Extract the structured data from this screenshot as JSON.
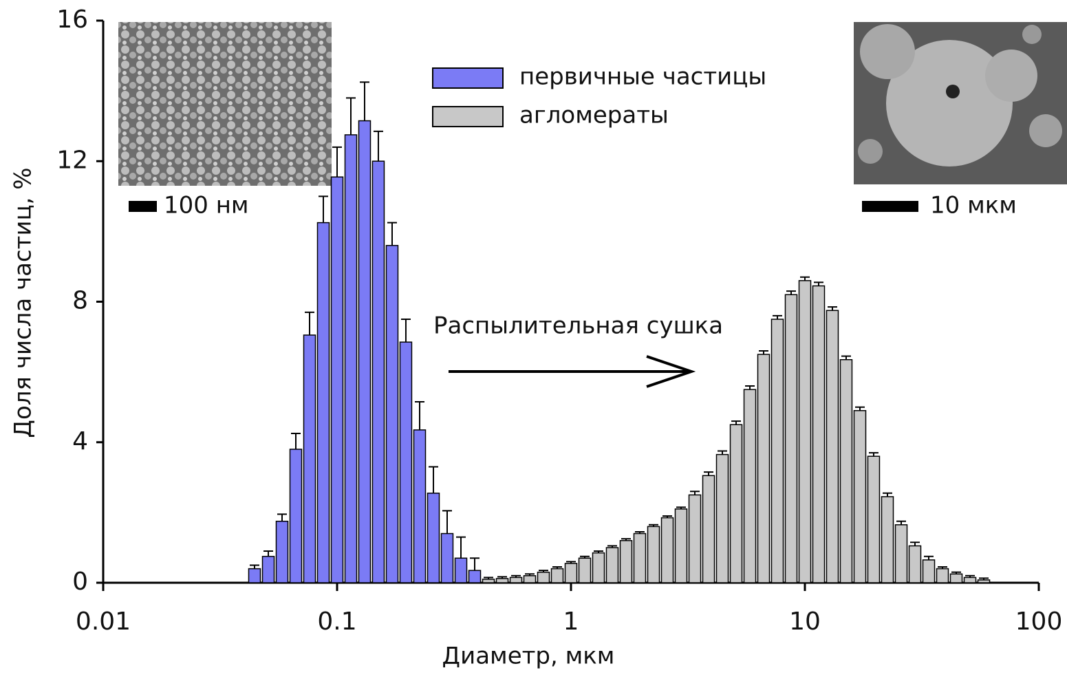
{
  "chart_data": {
    "type": "bar",
    "xlabel": "Диаметр, мкм",
    "ylabel": "Доля числа частиц, %",
    "xscale": "log",
    "xlim": [
      0.01,
      100
    ],
    "xticks": [
      0.01,
      0.1,
      1,
      10,
      100
    ],
    "ylim": [
      0,
      16
    ],
    "yticks": [
      0,
      4,
      8,
      12,
      16
    ],
    "legend": "upper center",
    "annotations": [
      "Распылительная сушка",
      "100 нм",
      "10 мкм"
    ],
    "series": [
      {
        "name": "первичные частицы",
        "color": "#7b7bf5",
        "x": [
          0.04436,
          0.05081,
          0.05817,
          0.06661,
          0.07627,
          0.08733,
          0.1,
          0.1145,
          0.1311,
          0.1501,
          0.1719,
          0.1968,
          0.2254,
          0.2581,
          0.2955,
          0.3384,
          0.3875
        ],
        "values": [
          0.4,
          0.75,
          1.75,
          3.8,
          7.05,
          10.25,
          11.55,
          12.75,
          13.15,
          12.0,
          9.6,
          6.85,
          4.35,
          2.55,
          1.4,
          0.7,
          0.35
        ],
        "errors": [
          0.1,
          0.15,
          0.2,
          0.45,
          0.65,
          0.75,
          0.85,
          1.05,
          1.1,
          0.85,
          0.65,
          0.65,
          0.8,
          0.75,
          0.65,
          0.6,
          0.35
        ]
      },
      {
        "name": "агломераты",
        "color": "#c8c8c8",
        "x": [
          0.4437,
          0.5081,
          0.5818,
          0.6661,
          0.7627,
          0.8733,
          1.0,
          1.145,
          1.311,
          1.501,
          1.719,
          1.968,
          2.254,
          2.581,
          2.955,
          3.384,
          3.875,
          4.437,
          5.081,
          5.818,
          6.661,
          7.627,
          8.733,
          10.0,
          11.45,
          13.11,
          15.01,
          17.19,
          19.68,
          22.54,
          25.81,
          29.55,
          33.84,
          38.75,
          44.37,
          50.81,
          58.18
        ],
        "values": [
          0.1,
          0.12,
          0.15,
          0.2,
          0.3,
          0.4,
          0.55,
          0.7,
          0.85,
          1.0,
          1.2,
          1.4,
          1.6,
          1.85,
          2.1,
          2.5,
          3.05,
          3.65,
          4.5,
          5.5,
          6.5,
          7.5,
          8.2,
          8.6,
          8.45,
          7.75,
          6.35,
          4.9,
          3.6,
          2.45,
          1.65,
          1.05,
          0.65,
          0.4,
          0.25,
          0.15,
          0.08
        ],
        "errors": [
          0.05,
          0.05,
          0.05,
          0.05,
          0.05,
          0.05,
          0.05,
          0.05,
          0.05,
          0.05,
          0.05,
          0.05,
          0.05,
          0.05,
          0.05,
          0.1,
          0.1,
          0.1,
          0.1,
          0.1,
          0.1,
          0.1,
          0.1,
          0.1,
          0.1,
          0.1,
          0.1,
          0.1,
          0.1,
          0.1,
          0.1,
          0.1,
          0.1,
          0.05,
          0.05,
          0.05,
          0.05
        ]
      }
    ]
  }
}
